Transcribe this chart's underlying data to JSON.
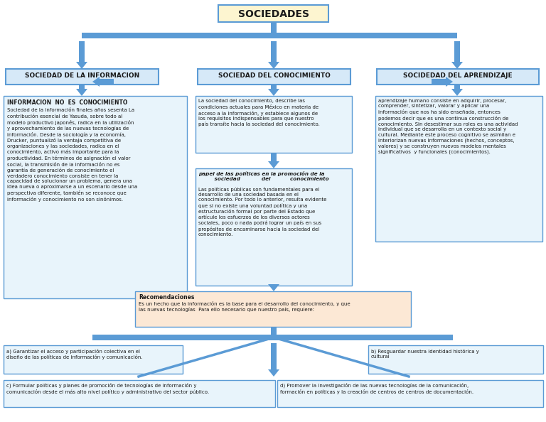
{
  "bg_color": "#ffffff",
  "box_colors": {
    "sociedades": "#fdf5d0",
    "header_blue": "#d6e9f8",
    "content_light": "#e8f4fb",
    "recom": "#fce8d5"
  },
  "border_color": "#5b9bd5",
  "arrow_color": "#5b9bd5",
  "title": "SOCIEDADES",
  "nodes": {
    "info_header": "SOCIEDAD DE LA INFORMACION",
    "conoc_header": "SOCIEDAD DEL CONOCIMIENTO",
    "aprend_header": "SOCIDEDAD DEL APRENDIZAJE"
  },
  "texts": {
    "info_title": "INFORMACION  NO  ES  CONOCIMIENTO",
    "info_body": "Sociedad de la información finales años sesenta La\ncontribución esencial de Yasuda, sobre todo al\nmodelo productivo japonés, radica en la utilización\ny aprovechamiento de las nuevas tecnologías de\ninformación. Desde la sociología y la economía,\nDrucker, puntualizó la ventaja competitiva de\norganizaciones y las sociedades, radica en el\nconocimiento, activo más importante para la\nproductividad. En términos de asignación el valor\nsocial, la transmisión de la información no es\ngarantía de generación de conocimiento el\nverdadero conocimiento consiste en tener la\ncapacidad de solucionar un problema, genera una\nidea nueva o aproximarse a un escenario desde una\nperspectiva diferente, también se reconoce que\ninformación y conocimiento no son sinónimos.",
    "conoc_body1": "La sociedad del conocimiento, describe las\ncondiciones actuales para México en materia de\nacceso a la información, y establece algunos de\nlos requisitos Indispensables para que nuestro\npaís transíte hacia la sociedad del conocimiento.",
    "conoc_title2": "papel de las políticas en la promoción de la\n         sociedad            del           conocimiento",
    "conoc_body2": "Las políticas públicas son fundamentales para el\ndesarrollo de una sociedad basada en el\nconocimiento. Por todo lo anterior, resulta evidente\nque si no existe una voluntad política y una\nestructuración formal por parte del Estado que\nartícule los esfuerzos de los diversos actores\nsociales, poco o nada podrá lograr un país en sus\npropósitos de encaminarse hacia la sociedad del\nconocimiento.",
    "aprend_body": "aprendizaje humano consiste en adquirir, procesar,\ncomprender, sintetizar, valorar y aplicar una\ninformación que nos ha sido enseñada, entonces\npodemos decir que es una continua construcción de\nconocimiento. Sin desestimar sus roles es una actividad\nindividual que se desarrolla en un contexto social y\ncultural. Mediante este proceso cognitivo se asimilan e\ninteriorizan nuevas informaciones (hechos, conceptos,\nvalores) y se construyen nuevos modelos mentales\nsignificativos  y funcionales (conocimientos).",
    "recom_title": "Recomendaciones",
    "recom_body": "Es un hecho que la información es la base para el desarrollo del conocimiento, y que\nlas nuevas tecnologías  Para ello necesario que nuestro país, requiere:",
    "box_a": "a) Garantizar el acceso y participación colectiva en el\ndiseño de las políticas de información y comunicación.",
    "box_b": "b) Resguardar nuestra identidad histórica y\ncultural",
    "box_c": "c) Formular políticas y planes de promoción de tecnologías de información y\ncomunicación desde el más alto nivel político y administrativo del sector público.",
    "box_d": "d) Promover la investigación de las nuevas tecnologías de la comunicación,\nformación en políticas y la creación de centros de centros de documentación."
  }
}
